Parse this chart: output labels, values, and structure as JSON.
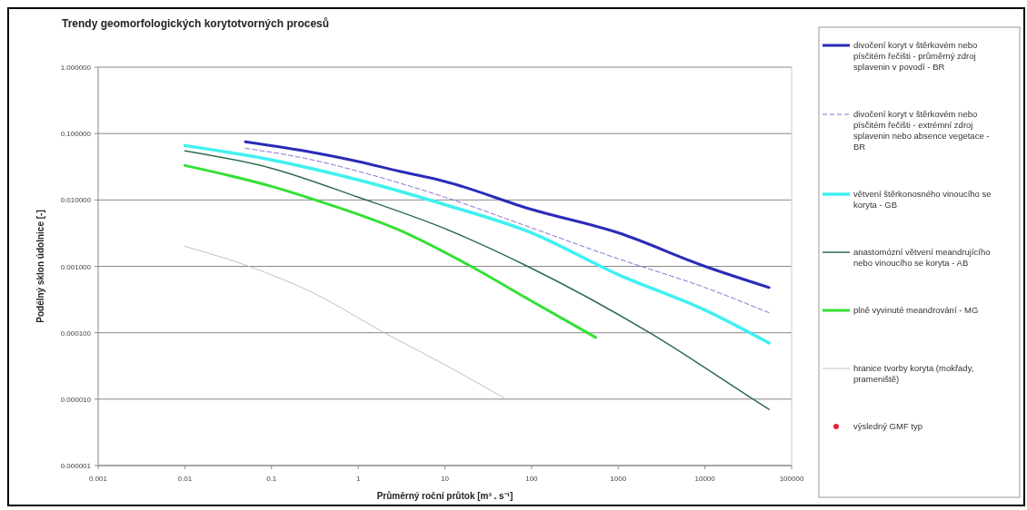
{
  "chart_data": {
    "type": "line",
    "title": "Trendy geomorfologických korytotvorných procesů",
    "xlabel": "Průměrný roční průtok [m³ . s⁻¹]",
    "ylabel": "Podélný sklon údolnice [-]",
    "log": "xy",
    "grid": "y",
    "legend": "right",
    "marker": "none",
    "line_style": "solid",
    "xlim": [
      0.001,
      100000
    ],
    "xticks": [
      0.001,
      0.01,
      0.1,
      1,
      10,
      100,
      1000,
      10000,
      100000
    ],
    "ylim": [
      1e-06,
      1
    ],
    "yticks": [
      {
        "value": 1,
        "label": "1.000000"
      },
      {
        "value": 0.1,
        "label": "0.100000"
      },
      {
        "value": 0.01,
        "label": "0.010000"
      },
      {
        "value": 0.001,
        "label": "0.001000"
      },
      {
        "value": 0.0001,
        "label": "0.000100"
      },
      {
        "value": 1e-05,
        "label": "0.000010"
      },
      {
        "value": 1e-06,
        "label": "0.000001"
      }
    ],
    "series": [
      {
        "name": "divočení koryt v štěrkovém nebo písčitém řečišti - průměrný zdroj splavenin v povodí - BR",
        "color": "#2b2bb8",
        "x": [
          0.05,
          0.3,
          1,
          3,
          10,
          100,
          1000,
          10000,
          55000
        ],
        "values": [
          0.075,
          0.052,
          0.038,
          0.027,
          0.019,
          0.0072,
          0.0032,
          0.001,
          0.00048
        ]
      },
      {
        "name": "divočení koryt v štěrkovém nebo písčitém řečišti - extrémní zdroj splavenin nebo absence vegetace - BR",
        "color": "#8a6fd0",
        "line_style": "dashed",
        "x": [
          0.05,
          0.3,
          1,
          10,
          100,
          1000,
          10000,
          55000
        ],
        "values": [
          0.06,
          0.04,
          0.027,
          0.011,
          0.0038,
          0.0013,
          0.00048,
          0.0002
        ]
      },
      {
        "name": "větvení štěrkonosného vinoucího se koryta - GB",
        "color": "#40f0f0",
        "x": [
          0.01,
          0.1,
          1,
          10,
          100,
          1000,
          10000,
          55000
        ],
        "values": [
          0.066,
          0.04,
          0.02,
          0.0085,
          0.0032,
          0.00075,
          0.00022,
          7e-05
        ]
      },
      {
        "name": "anastomózní větvení meandrujícího nebo vinoucího se koryta - AB",
        "color": "#2e6b4e",
        "x": [
          0.01,
          0.1,
          1,
          10,
          90,
          2300,
          36000,
          55000
        ],
        "values": [
          0.055,
          0.03,
          0.011,
          0.0037,
          0.001,
          0.0001,
          1e-05,
          7e-06
        ]
      },
      {
        "name": "plně vyvinuté meandrování - MG",
        "color": "#33e033",
        "x": [
          0.01,
          0.1,
          0.32,
          3,
          20,
          100,
          550
        ],
        "values": [
          0.033,
          0.016,
          0.01,
          0.0035,
          0.001,
          0.0003,
          8.5e-05
        ]
      },
      {
        "name": "hranice tvorby koryta (mokřady, prameniště)",
        "color": "#c0c0c0",
        "x": [
          0.01,
          0.055,
          0.3,
          2,
          10,
          51
        ],
        "values": [
          0.002,
          0.001,
          0.0004,
          0.0001,
          3.3e-05,
          1e-05
        ]
      },
      {
        "name": "výsledný GMF typ",
        "color": "#e0203a",
        "type": "scatter",
        "marker": "circle"
      }
    ]
  }
}
